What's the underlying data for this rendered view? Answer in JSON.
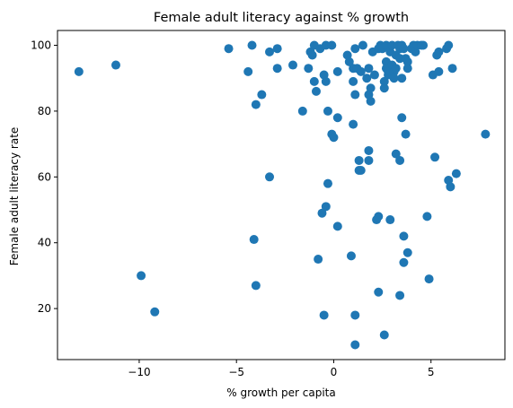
{
  "chart_data": {
    "type": "scatter",
    "title": "Female adult literacy against % growth",
    "xlabel": "% growth per capita",
    "ylabel": "Female adult literacy rate",
    "xlim": [
      -14.2,
      8.8
    ],
    "ylim": [
      4.5,
      104.5
    ],
    "xticks": [
      -10,
      -5,
      0,
      5
    ],
    "xtick_labels": [
      "−10",
      "−5",
      "0",
      "5"
    ],
    "yticks": [
      20,
      40,
      60,
      80,
      100
    ],
    "ytick_labels": [
      "20",
      "40",
      "60",
      "80",
      "100"
    ],
    "grid": false,
    "legend": "none",
    "marker_color": "#1f77b4",
    "points": [
      {
        "x": -13.1,
        "y": 92
      },
      {
        "x": -11.2,
        "y": 94
      },
      {
        "x": -9.9,
        "y": 30
      },
      {
        "x": -9.2,
        "y": 19
      },
      {
        "x": -5.4,
        "y": 99
      },
      {
        "x": -4.4,
        "y": 92
      },
      {
        "x": -4.2,
        "y": 100
      },
      {
        "x": -4.1,
        "y": 41
      },
      {
        "x": -4.0,
        "y": 82
      },
      {
        "x": -4.0,
        "y": 27
      },
      {
        "x": -3.7,
        "y": 85
      },
      {
        "x": -3.3,
        "y": 98
      },
      {
        "x": -3.3,
        "y": 60
      },
      {
        "x": -2.9,
        "y": 99
      },
      {
        "x": -2.9,
        "y": 93
      },
      {
        "x": -2.1,
        "y": 94
      },
      {
        "x": -1.6,
        "y": 80
      },
      {
        "x": -1.3,
        "y": 93
      },
      {
        "x": -1.2,
        "y": 98
      },
      {
        "x": -1.1,
        "y": 97
      },
      {
        "x": -1.0,
        "y": 100
      },
      {
        "x": -1.0,
        "y": 89
      },
      {
        "x": -0.9,
        "y": 86
      },
      {
        "x": -0.8,
        "y": 35
      },
      {
        "x": -0.7,
        "y": 99
      },
      {
        "x": -0.6,
        "y": 49
      },
      {
        "x": -0.5,
        "y": 91
      },
      {
        "x": -0.5,
        "y": 18
      },
      {
        "x": -0.4,
        "y": 51
      },
      {
        "x": -0.4,
        "y": 100
      },
      {
        "x": -0.4,
        "y": 89
      },
      {
        "x": -0.3,
        "y": 58
      },
      {
        "x": -0.3,
        "y": 80
      },
      {
        "x": -0.1,
        "y": 100
      },
      {
        "x": -0.1,
        "y": 73
      },
      {
        "x": 0.0,
        "y": 72
      },
      {
        "x": 0.2,
        "y": 92
      },
      {
        "x": 0.2,
        "y": 78
      },
      {
        "x": 0.2,
        "y": 45
      },
      {
        "x": 0.7,
        "y": 97
      },
      {
        "x": 0.8,
        "y": 95
      },
      {
        "x": 0.9,
        "y": 36
      },
      {
        "x": 1.0,
        "y": 93
      },
      {
        "x": 1.0,
        "y": 89
      },
      {
        "x": 1.0,
        "y": 76
      },
      {
        "x": 1.1,
        "y": 99
      },
      {
        "x": 1.1,
        "y": 85
      },
      {
        "x": 1.1,
        "y": 18
      },
      {
        "x": 1.1,
        "y": 9
      },
      {
        "x": 1.2,
        "y": 93
      },
      {
        "x": 1.3,
        "y": 65
      },
      {
        "x": 1.3,
        "y": 62
      },
      {
        "x": 1.4,
        "y": 92
      },
      {
        "x": 1.4,
        "y": 62
      },
      {
        "x": 1.5,
        "y": 100
      },
      {
        "x": 1.7,
        "y": 90
      },
      {
        "x": 1.8,
        "y": 93
      },
      {
        "x": 1.8,
        "y": 85
      },
      {
        "x": 1.8,
        "y": 68
      },
      {
        "x": 1.8,
        "y": 65
      },
      {
        "x": 1.9,
        "y": 87
      },
      {
        "x": 1.9,
        "y": 83
      },
      {
        "x": 2.0,
        "y": 98
      },
      {
        "x": 2.1,
        "y": 91
      },
      {
        "x": 2.2,
        "y": 47
      },
      {
        "x": 2.3,
        "y": 99
      },
      {
        "x": 2.3,
        "y": 48
      },
      {
        "x": 2.3,
        "y": 25
      },
      {
        "x": 2.4,
        "y": 100
      },
      {
        "x": 2.5,
        "y": 99
      },
      {
        "x": 2.6,
        "y": 89
      },
      {
        "x": 2.6,
        "y": 87
      },
      {
        "x": 2.6,
        "y": 12
      },
      {
        "x": 2.7,
        "y": 100
      },
      {
        "x": 2.7,
        "y": 95
      },
      {
        "x": 2.7,
        "y": 93
      },
      {
        "x": 2.8,
        "y": 92
      },
      {
        "x": 2.8,
        "y": 91
      },
      {
        "x": 2.9,
        "y": 98
      },
      {
        "x": 2.9,
        "y": 47
      },
      {
        "x": 3.0,
        "y": 100
      },
      {
        "x": 3.0,
        "y": 94
      },
      {
        "x": 3.1,
        "y": 92
      },
      {
        "x": 3.1,
        "y": 90
      },
      {
        "x": 3.2,
        "y": 97
      },
      {
        "x": 3.2,
        "y": 93
      },
      {
        "x": 3.2,
        "y": 67
      },
      {
        "x": 3.3,
        "y": 100
      },
      {
        "x": 3.4,
        "y": 99
      },
      {
        "x": 3.4,
        "y": 96
      },
      {
        "x": 3.4,
        "y": 65
      },
      {
        "x": 3.4,
        "y": 24
      },
      {
        "x": 3.5,
        "y": 100
      },
      {
        "x": 3.5,
        "y": 90
      },
      {
        "x": 3.5,
        "y": 78
      },
      {
        "x": 3.6,
        "y": 99
      },
      {
        "x": 3.6,
        "y": 42
      },
      {
        "x": 3.6,
        "y": 34
      },
      {
        "x": 3.7,
        "y": 96
      },
      {
        "x": 3.7,
        "y": 73
      },
      {
        "x": 3.8,
        "y": 95
      },
      {
        "x": 3.8,
        "y": 93
      },
      {
        "x": 3.8,
        "y": 37
      },
      {
        "x": 4.0,
        "y": 99
      },
      {
        "x": 4.1,
        "y": 100
      },
      {
        "x": 4.2,
        "y": 98
      },
      {
        "x": 4.3,
        "y": 100
      },
      {
        "x": 4.5,
        "y": 100
      },
      {
        "x": 4.6,
        "y": 100
      },
      {
        "x": 4.8,
        "y": 48
      },
      {
        "x": 4.9,
        "y": 29
      },
      {
        "x": 5.1,
        "y": 91
      },
      {
        "x": 5.2,
        "y": 66
      },
      {
        "x": 5.3,
        "y": 97
      },
      {
        "x": 5.4,
        "y": 98
      },
      {
        "x": 5.4,
        "y": 92
      },
      {
        "x": 5.8,
        "y": 99
      },
      {
        "x": 5.9,
        "y": 100
      },
      {
        "x": 5.9,
        "y": 59
      },
      {
        "x": 6.0,
        "y": 57
      },
      {
        "x": 6.1,
        "y": 93
      },
      {
        "x": 6.3,
        "y": 61
      },
      {
        "x": 7.8,
        "y": 73
      }
    ]
  }
}
